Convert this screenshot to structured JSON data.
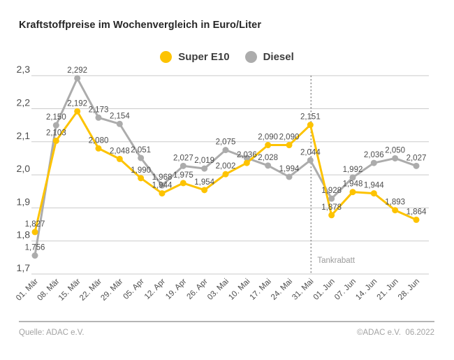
{
  "title": "Kraftstoffpreise im Wochenvergleich in Euro/Liter",
  "footer": {
    "source": "Quelle: ADAC e.V.",
    "copyright": "©ADAC e.V.  06.2022"
  },
  "colors": {
    "super_e10": "#FDC300",
    "diesel": "#ACACAC",
    "grid": "#CBCBCB",
    "value_label": "#4D4D4D",
    "axis_label": "#4D4D4D",
    "annotation": "#9B9B9B",
    "divider": "#8C8C8C"
  },
  "chart_data": {
    "type": "line",
    "title": "Kraftstoffpreise im Wochenvergleich in Euro/Liter",
    "xlabel": "",
    "ylabel": "Euro/Liter",
    "ylim": [
      1.7,
      2.3
    ],
    "grid": true,
    "legend_position": "top",
    "yticks": [
      {
        "label": "2,3",
        "value": 2.3
      },
      {
        "label": "2,2",
        "value": 2.2
      },
      {
        "label": "2,1",
        "value": 2.1
      },
      {
        "label": "2,0",
        "value": 2.0
      },
      {
        "label": "1,9",
        "value": 1.9
      },
      {
        "label": "1,8",
        "value": 1.8
      },
      {
        "label": "1,7",
        "value": 1.7
      }
    ],
    "categories": [
      "01. Mär",
      "08. Mär",
      "15. Mär",
      "22. Mär",
      "29. Mär",
      "05. Apr",
      "12. Apr",
      "19. Apr",
      "26. Apr",
      "03. Mai",
      "10. Mai",
      "17. Mai",
      "24. Mai",
      "31. Mai",
      "01. Jun",
      "07. Jun",
      "14. Jun",
      "21. Jun",
      "28. Jun"
    ],
    "series": [
      {
        "name": "Diesel",
        "color": "#ACACAC",
        "values": [
          1.756,
          2.15,
          2.292,
          2.173,
          2.154,
          2.051,
          1.968,
          2.027,
          2.019,
          2.075,
          2.051,
          2.028,
          1.994,
          2.044,
          1.928,
          1.992,
          2.036,
          2.05,
          2.027
        ],
        "labels": [
          "1,756",
          "2,150",
          "2,292",
          "2,173",
          "2,154",
          "2,051",
          "1,968",
          "2,027",
          "2,019",
          "2,075",
          "",
          "2,028",
          "1,994",
          "2,044",
          "1,928",
          "1,992",
          "2,036",
          "2,050",
          "2,027"
        ]
      },
      {
        "name": "Super E10",
        "color": "#FDC300",
        "values": [
          1.827,
          2.103,
          2.192,
          2.08,
          2.048,
          1.99,
          1.944,
          1.975,
          1.954,
          2.002,
          2.036,
          2.09,
          2.09,
          2.151,
          1.878,
          1.948,
          1.944,
          1.893,
          1.864
        ],
        "labels": [
          "1,827",
          "2,103",
          "2,192",
          "2,080",
          "2,048",
          "1,990",
          "1,944",
          "1,975",
          "1,954",
          "2,002",
          "2,036",
          "2,090",
          "2,090",
          "2,151",
          "1,878",
          "1,948",
          "1,944",
          "1,893",
          "1,864"
        ]
      }
    ],
    "annotation": {
      "text": "Tankrabatt",
      "at_category_index": 13
    }
  }
}
